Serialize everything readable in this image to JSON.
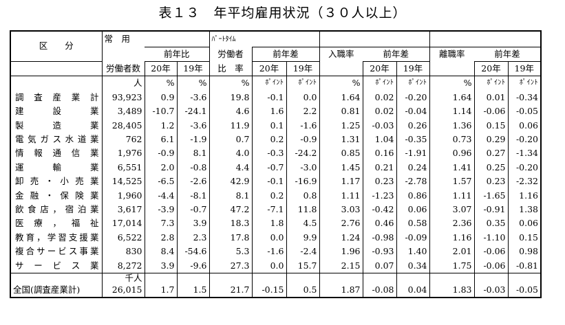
{
  "title": "表１３　年平均雇用状況（３０人以上）",
  "header": {
    "kubun": "区　　分",
    "jouyou": "常　用",
    "part_small": "ﾊﾟｰﾄﾀｲﾑ",
    "part_label": "労働者",
    "part_ratio": "比　率",
    "rodosha_su": "労働者数",
    "zennenhi": "前年比",
    "zennensa": "前年差",
    "nyushoku": "入職率",
    "rishoku": "離職率",
    "y20": "20年",
    "y19": "19年"
  },
  "units": {
    "people": "人",
    "pct": "%",
    "point": "ﾎﾟｲﾝﾄ",
    "thousand_people": "千人"
  },
  "rows": [
    {
      "label": "調査産業計",
      "workers": "93,923",
      "r20": "0.9",
      "r19": "-3.6",
      "part": "19.8",
      "p20": "-0.1",
      "p19": "0.0",
      "in": "1.64",
      "in20": "0.02",
      "in19": "-0.20",
      "out": "1.64",
      "out20": "0.01",
      "out19": "-0.34"
    },
    {
      "label": "建設業",
      "workers": "3,489",
      "r20": "-10.7",
      "r19": "-24.1",
      "part": "4.6",
      "p20": "1.6",
      "p19": "2.2",
      "in": "0.81",
      "in20": "0.02",
      "in19": "-0.04",
      "out": "1.14",
      "out20": "-0.06",
      "out19": "-0.05"
    },
    {
      "label": "製造業",
      "workers": "28,405",
      "r20": "1.2",
      "r19": "-3.6",
      "part": "11.9",
      "p20": "0.1",
      "p19": "-1.6",
      "in": "1.25",
      "in20": "-0.03",
      "in19": "0.26",
      "out": "1.36",
      "out20": "0.15",
      "out19": "0.06"
    },
    {
      "label": "電気ガス水道業",
      "workers": "762",
      "r20": "6.1",
      "r19": "-1.9",
      "part": "0.7",
      "p20": "0.2",
      "p19": "-0.9",
      "in": "1.31",
      "in20": "1.04",
      "in19": "-0.35",
      "out": "0.73",
      "out20": "0.29",
      "out19": "-0.20"
    },
    {
      "label": "情報通信業",
      "workers": "1,976",
      "r20": "-0.9",
      "r19": "8.1",
      "part": "4.0",
      "p20": "-0.3",
      "p19": "-24.2",
      "in": "0.85",
      "in20": "0.16",
      "in19": "-1.91",
      "out": "0.96",
      "out20": "0.27",
      "out19": "-1.34"
    },
    {
      "label": "運輸業",
      "workers": "6,551",
      "r20": "2.0",
      "r19": "-0.8",
      "part": "4.4",
      "p20": "-0.7",
      "p19": "-3.0",
      "in": "1.45",
      "in20": "0.21",
      "in19": "0.24",
      "out": "1.41",
      "out20": "0.25",
      "out19": "-0.20"
    },
    {
      "label": "卸売・小売業",
      "workers": "14,525",
      "r20": "-6.5",
      "r19": "-2.6",
      "part": "42.9",
      "p20": "-0.1",
      "p19": "-16.9",
      "in": "1.17",
      "in20": "0.23",
      "in19": "-2.78",
      "out": "1.57",
      "out20": "0.23",
      "out19": "-2.32"
    },
    {
      "label": "金融・保険業",
      "workers": "1,960",
      "r20": "-4.4",
      "r19": "-8.1",
      "part": "8.1",
      "p20": "0.2",
      "p19": "0.8",
      "in": "1.11",
      "in20": "-1.23",
      "in19": "0.86",
      "out": "1.11",
      "out20": "-1.65",
      "out19": "1.16"
    },
    {
      "label": "飲食店，宿泊業",
      "workers": "3,617",
      "r20": "-3.9",
      "r19": "-0.7",
      "part": "47.2",
      "p20": "-7.1",
      "p19": "11.8",
      "in": "3.03",
      "in20": "-0.42",
      "in19": "0.06",
      "out": "3.07",
      "out20": "-0.91",
      "out19": "1.38"
    },
    {
      "label": "医療，福祉",
      "workers": "17,014",
      "r20": "7.3",
      "r19": "3.9",
      "part": "18.3",
      "p20": "1.8",
      "p19": "4.5",
      "in": "2.76",
      "in20": "0.46",
      "in19": "0.58",
      "out": "2.36",
      "out20": "0.35",
      "out19": "0.06"
    },
    {
      "label": "教育，学習支援業",
      "workers": "6,522",
      "r20": "2.8",
      "r19": "2.3",
      "part": "17.8",
      "p20": "0.0",
      "p19": "9.9",
      "in": "1.24",
      "in20": "-0.98",
      "in19": "-0.09",
      "out": "1.16",
      "out20": "-1.10",
      "out19": "0.15"
    },
    {
      "label": "複合サービス事業",
      "workers": "830",
      "r20": "8.4",
      "r19": "-54.6",
      "part": "5.3",
      "p20": "-1.6",
      "p19": "-2.4",
      "in": "1.96",
      "in20": "-0.93",
      "in19": "1.40",
      "out": "2.01",
      "out20": "-0.06",
      "out19": "0.98"
    },
    {
      "label": "サービス業",
      "workers": "8,272",
      "r20": "3.9",
      "r19": "-9.6",
      "part": "27.3",
      "p20": "0.0",
      "p19": "15.7",
      "in": "2.15",
      "in20": "0.07",
      "in19": "0.34",
      "out": "1.75",
      "out20": "-0.06",
      "out19": "-0.81"
    }
  ],
  "national": {
    "label": "全国(調査産業計)",
    "workers": "26,015",
    "r20": "1.7",
    "r19": "1.5",
    "part": "21.7",
    "p20": "-0.15",
    "p19": "0.5",
    "in": "1.87",
    "in20": "-0.08",
    "in19": "0.04",
    "out": "1.83",
    "out20": "-0.03",
    "out19": "-0.05"
  }
}
